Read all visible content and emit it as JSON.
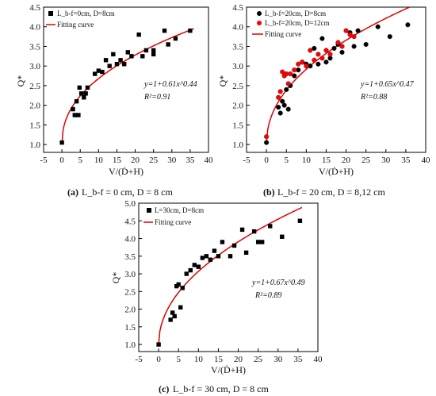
{
  "chart_data": [
    {
      "type": "scatter",
      "caption": {
        "letter": "(a)",
        "text": "L_b-f = 0 cm, D = 8 cm"
      },
      "xlabel": "V/(Ḋ+H)",
      "ylabel": "Q*",
      "xlim": [
        -5,
        40
      ],
      "ylim": [
        0.8,
        4.5
      ],
      "xticks": [
        -5,
        0,
        5,
        10,
        15,
        20,
        25,
        30,
        35,
        40
      ],
      "yticks": [
        1.0,
        1.5,
        2.0,
        2.5,
        3.0,
        3.5,
        4.0,
        4.5
      ],
      "legend": [
        "L_b-f=0cm, D=8cm",
        "Fitting curve"
      ],
      "equation": "y=1+0.61x^0.44",
      "r2": "R²=0.91",
      "fit": {
        "a": 0.61,
        "b": 0.44
      },
      "series": [
        {
          "marker": "square",
          "color": "#000000",
          "points": [
            [
              0,
              1.05
            ],
            [
              3,
              1.9
            ],
            [
              3.5,
              1.75
            ],
            [
              4,
              2.1
            ],
            [
              4.5,
              1.75
            ],
            [
              4.8,
              2.45
            ],
            [
              5.3,
              2.3
            ],
            [
              6,
              2.2
            ],
            [
              6.5,
              2.3
            ],
            [
              7,
              2.45
            ],
            [
              9,
              2.8
            ],
            [
              10,
              2.88
            ],
            [
              11,
              2.85
            ],
            [
              12,
              3.15
            ],
            [
              13,
              3.0
            ],
            [
              14,
              3.3
            ],
            [
              15,
              3.05
            ],
            [
              16,
              3.15
            ],
            [
              17,
              3.05
            ],
            [
              18,
              3.35
            ],
            [
              19,
              3.25
            ],
            [
              21,
              3.8
            ],
            [
              22,
              3.25
            ],
            [
              23,
              3.4
            ],
            [
              25,
              3.4
            ],
            [
              25,
              3.3
            ],
            [
              28,
              3.9
            ],
            [
              29,
              3.55
            ],
            [
              31,
              3.7
            ],
            [
              35,
              3.9
            ]
          ]
        }
      ]
    },
    {
      "type": "scatter",
      "caption": {
        "letter": "(b)",
        "text": "L_b-f = 20 cm, D = 8,12 cm"
      },
      "xlabel": "V/(Ḋ+H)",
      "ylabel": "Q*",
      "xlim": [
        -5,
        40
      ],
      "ylim": [
        0.8,
        4.5
      ],
      "xticks": [
        -5,
        0,
        5,
        10,
        15,
        20,
        25,
        30,
        35,
        40
      ],
      "yticks": [
        1.0,
        1.5,
        2.0,
        2.5,
        3.0,
        3.5,
        4.0,
        4.5
      ],
      "legend": [
        "L_b-f=20cm, D=8cm",
        "L_b-f=20cm, D=12cm",
        "Fitting curve"
      ],
      "equation": "y=1+0.65x^0.47",
      "r2": "R²=0.88",
      "fit": {
        "a": 0.65,
        "b": 0.47
      },
      "series": [
        {
          "marker": "circle",
          "color": "#000000",
          "points": [
            [
              0,
              1.05
            ],
            [
              3,
              1.95
            ],
            [
              3.5,
              1.8
            ],
            [
              4,
              2.1
            ],
            [
              4.5,
              2.0
            ],
            [
              5,
              2.4
            ],
            [
              5.5,
              1.9
            ],
            [
              6,
              2.5
            ],
            [
              7,
              2.75
            ],
            [
              8,
              2.9
            ],
            [
              9,
              3.1
            ],
            [
              10,
              3.05
            ],
            [
              11,
              3.0
            ],
            [
              12,
              3.45
            ],
            [
              13,
              3.05
            ],
            [
              14,
              3.7
            ],
            [
              15,
              3.1
            ],
            [
              16,
              3.2
            ],
            [
              17,
              3.45
            ],
            [
              18,
              3.55
            ],
            [
              19,
              3.35
            ],
            [
              21,
              3.85
            ],
            [
              22,
              3.5
            ],
            [
              23,
              3.9
            ],
            [
              25,
              3.55
            ],
            [
              28,
              4.0
            ],
            [
              31,
              3.75
            ],
            [
              35.5,
              4.05
            ]
          ]
        },
        {
          "marker": "circle",
          "color": "#ff0000",
          "points": [
            [
              0,
              1.2
            ],
            [
              3,
              2.2
            ],
            [
              3.5,
              2.35
            ],
            [
              4,
              2.85
            ],
            [
              4.5,
              2.75
            ],
            [
              5,
              2.8
            ],
            [
              5.5,
              2.55
            ],
            [
              6,
              2.8
            ],
            [
              7,
              2.9
            ],
            [
              8,
              3.05
            ],
            [
              9,
              3.1
            ],
            [
              10,
              3.0
            ],
            [
              11,
              3.4
            ],
            [
              12,
              3.15
            ],
            [
              13,
              3.3
            ],
            [
              14,
              3.2
            ],
            [
              15,
              3.4
            ],
            [
              16,
              3.3
            ],
            [
              18,
              3.6
            ],
            [
              19,
              3.5
            ],
            [
              20,
              3.9
            ],
            [
              21,
              3.8
            ],
            [
              22,
              3.75
            ]
          ]
        }
      ]
    },
    {
      "type": "scatter",
      "caption": {
        "letter": "(c)",
        "text": "L_b-f = 30 cm, D = 8 cm"
      },
      "xlabel": "V/(Ḋ+H)",
      "ylabel": "Q*",
      "xlim": [
        -5,
        40
      ],
      "ylim": [
        0.8,
        5.0
      ],
      "xticks": [
        -5,
        0,
        5,
        10,
        15,
        20,
        25,
        30,
        35,
        40
      ],
      "yticks": [
        1.0,
        1.5,
        2.0,
        2.5,
        3.0,
        3.5,
        4.0,
        4.5,
        5.0
      ],
      "legend": [
        "L=30cm, D=8cm",
        "Fitting curve"
      ],
      "equation": "y=1+0.67x^0.49",
      "r2": "R²=0.89",
      "fit": {
        "a": 0.67,
        "b": 0.49
      },
      "series": [
        {
          "marker": "square",
          "color": "#000000",
          "points": [
            [
              0,
              1.0
            ],
            [
              3,
              1.7
            ],
            [
              3.5,
              1.9
            ],
            [
              4,
              1.8
            ],
            [
              4.5,
              2.65
            ],
            [
              5,
              2.7
            ],
            [
              5.5,
              2.05
            ],
            [
              6,
              2.6
            ],
            [
              7,
              3.0
            ],
            [
              8,
              3.1
            ],
            [
              9,
              3.25
            ],
            [
              10,
              3.2
            ],
            [
              11,
              3.45
            ],
            [
              12,
              3.5
            ],
            [
              13,
              3.4
            ],
            [
              14,
              3.65
            ],
            [
              15,
              3.5
            ],
            [
              16,
              3.9
            ],
            [
              18,
              3.5
            ],
            [
              19,
              3.8
            ],
            [
              21,
              4.25
            ],
            [
              22,
              3.6
            ],
            [
              24,
              4.2
            ],
            [
              25,
              3.9
            ],
            [
              26,
              3.9
            ],
            [
              28,
              4.35
            ],
            [
              31,
              4.05
            ],
            [
              35.5,
              4.5
            ]
          ]
        }
      ]
    }
  ]
}
